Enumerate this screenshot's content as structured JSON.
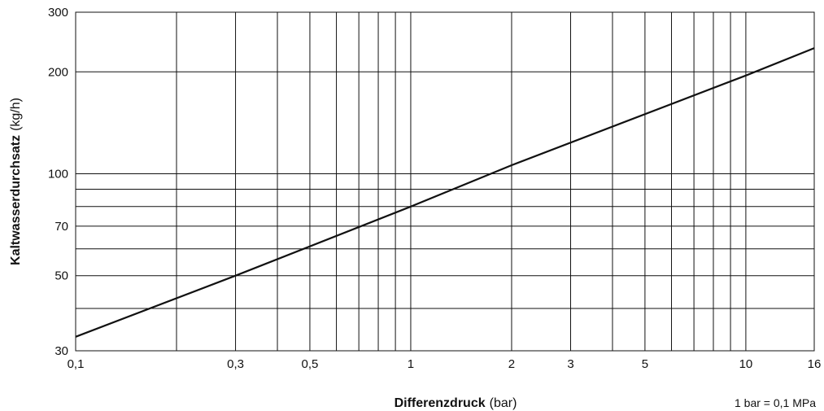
{
  "chart_data": {
    "type": "line",
    "x_scale": "log",
    "y_scale": "log",
    "xlim": [
      0.1,
      16
    ],
    "ylim": [
      30,
      300
    ],
    "grid": true,
    "xlabel_bold": "Differenzdruck",
    "xlabel_unit": "(bar)",
    "ylabel_bold": "Kaltwasserdurchsatz",
    "ylabel_unit": "(kg/h)",
    "note": "1 bar = 0,1 MPa",
    "x_gridlines": [
      0.1,
      0.2,
      0.3,
      0.4,
      0.5,
      0.6,
      0.7,
      0.8,
      0.9,
      1,
      2,
      3,
      4,
      5,
      6,
      7,
      8,
      9,
      10,
      16
    ],
    "y_gridlines": [
      30,
      40,
      50,
      60,
      70,
      80,
      90,
      100,
      200,
      300
    ],
    "x_ticks": [
      {
        "value": 0.1,
        "label": "0,1"
      },
      {
        "value": 0.3,
        "label": "0,3"
      },
      {
        "value": 0.5,
        "label": "0,5"
      },
      {
        "value": 1,
        "label": "1"
      },
      {
        "value": 2,
        "label": "2"
      },
      {
        "value": 3,
        "label": "3"
      },
      {
        "value": 5,
        "label": "5"
      },
      {
        "value": 10,
        "label": "10"
      },
      {
        "value": 16,
        "label": "16"
      }
    ],
    "y_ticks": [
      {
        "value": 30,
        "label": "30"
      },
      {
        "value": 50,
        "label": "50"
      },
      {
        "value": 70,
        "label": "70"
      },
      {
        "value": 100,
        "label": "100"
      },
      {
        "value": 200,
        "label": "200"
      },
      {
        "value": 300,
        "label": "300"
      }
    ],
    "series": [
      {
        "x": [
          0.1,
          0.3,
          1,
          2,
          10,
          16
        ],
        "y": [
          33,
          50,
          80,
          106,
          195,
          235
        ]
      }
    ]
  }
}
